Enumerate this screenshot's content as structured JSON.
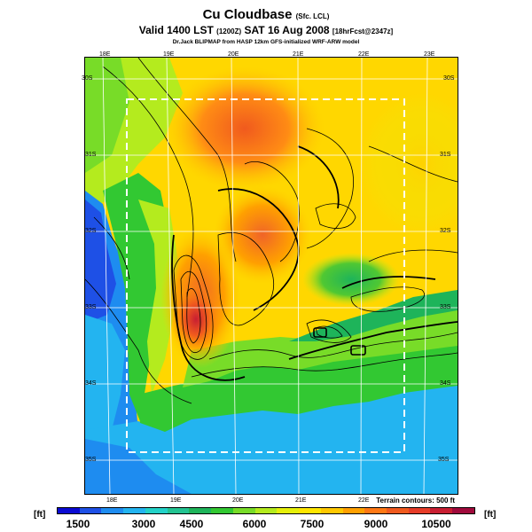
{
  "header": {
    "title": "Cu Cloudbase",
    "title_sub": "(Sfc. LCL)",
    "valid_line": "Valid 1400 LST",
    "valid_zulu": "(1200Z)",
    "valid_date": "SAT 16 Aug 2008",
    "forecast_tag": "[18hrFcst@2347z]",
    "credit": "Dr.Jack BLIPMAP from HASP 12km GFS-initialized WRF-ARW model"
  },
  "map": {
    "lon_labels_top": [
      "18E",
      "19E",
      "20E",
      "21E",
      "22E",
      "23E"
    ],
    "lon_labels_bottom": [
      "18E",
      "19E",
      "20E",
      "21E",
      "22E"
    ],
    "lat_labels_left": [
      "30S",
      "31S",
      "32S",
      "33S",
      "34S",
      "35S"
    ],
    "lat_labels_right": [
      "30S",
      "31S",
      "32S",
      "33S",
      "34S",
      "35S"
    ],
    "terrain_note": "Terrain contours: 500 ft"
  },
  "colorbar": {
    "unit_left": "[ft]",
    "unit_right": "[ft]",
    "tick_labels": [
      "1500",
      "3000",
      "4500",
      "6000",
      "7500",
      "9000",
      "10500"
    ],
    "colors": [
      "#0a0ad2",
      "#1e50e6",
      "#1e8cf0",
      "#23b4f0",
      "#23d2c8",
      "#23c391",
      "#1eb45a",
      "#32c832",
      "#78dc28",
      "#b4eb1e",
      "#e6f00a",
      "#ffe600",
      "#ffc800",
      "#ffa000",
      "#ff7814",
      "#f05a1e",
      "#e63c28",
      "#c81e32",
      "#a00a3c"
    ]
  }
}
